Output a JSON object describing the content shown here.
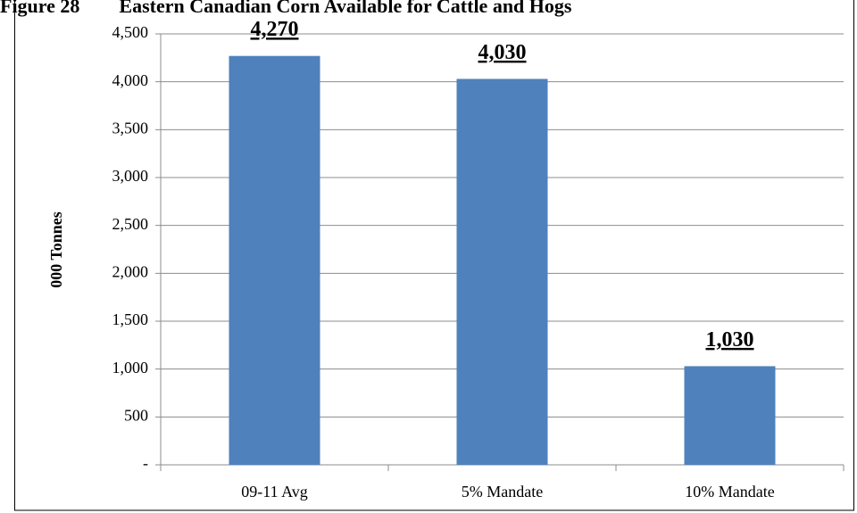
{
  "chart_data": {
    "type": "bar",
    "title": "Figure 28        Eastern Canadian Corn Available for Cattle and Hogs",
    "y_label": "000 Tonnes",
    "categories": [
      "09-11 Avg",
      "5% Mandate",
      "10% Mandate"
    ],
    "values": [
      4270,
      4030,
      1030
    ],
    "value_labels": [
      "4,270",
      "4,030",
      "1,030"
    ],
    "color": "#4f81bd",
    "ylim": [
      0,
      4500
    ],
    "yticks": [
      {
        "value": 0,
        "label": "-"
      },
      500,
      {
        "value": 1000,
        "label": "1,000"
      },
      {
        "value": 1500,
        "label": "1,500"
      },
      {
        "value": 2000,
        "label": "2,000"
      },
      {
        "value": 2500,
        "label": "2,500"
      },
      {
        "value": 3000,
        "label": "3,000"
      },
      {
        "value": 3500,
        "label": "3,500"
      },
      {
        "value": 4000,
        "label": "4,000"
      },
      {
        "value": 4500,
        "label": "4,500"
      }
    ],
    "grid": true
  }
}
